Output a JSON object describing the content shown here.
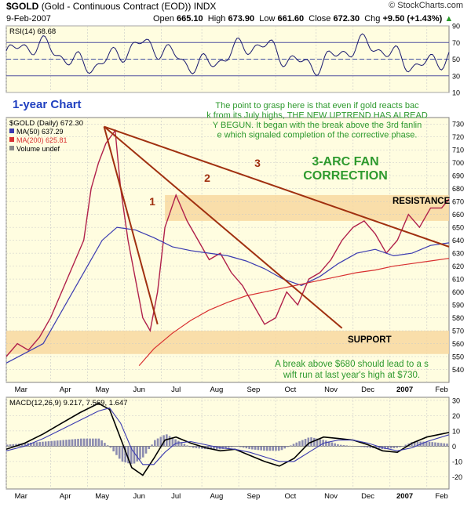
{
  "header": {
    "symbol": "$GOLD",
    "name": "(Gold - Continuous Contract (EOD))",
    "exchange": "INDX",
    "brand": "© StockCharts.com",
    "date": "9-Feb-2007",
    "open_label": "Open",
    "open": "665.10",
    "high_label": "High",
    "high": "673.90",
    "low_label": "Low",
    "low": "661.60",
    "close_label": "Close",
    "close": "672.30",
    "chg_label": "Chg",
    "chg": "+9.50 (+1.43%)",
    "chg_arrow": "▲"
  },
  "colors": {
    "panel_bg": "#fffde0",
    "grid": "#c8c8c8",
    "band": "#f8d8a0",
    "price_line": "#b0204a",
    "ma50": "#3a3ab0",
    "ma200": "#d83030",
    "fan": "#a03010",
    "annotation_green": "#2e9a2e",
    "annotation_blue": "#2040c0",
    "macd_hist": "#8c8cb0"
  },
  "annotations": {
    "one_year": "1-year Chart",
    "commentary": "The point to grasp here is that even if gold reacts back from its July highs, THE NEW UPTREND HAS ALREADY BEGUN. It began with the break above the 3rd fanline which signaled completion of the corrective phase.",
    "fan_title_1": "3-ARC FAN",
    "fan_title_2": "CORRECTION",
    "resistance": "RESISTANCE",
    "support": "SUPPORT",
    "breakout": "A break above $680 should lead to a swift run at last year's high at $730.",
    "fan_1": "1",
    "fan_2": "2",
    "fan_3": "3"
  },
  "chart_data": [
    {
      "type": "line",
      "panel": "RSI",
      "legend": "RSI(14) 68.68",
      "ylim": [
        10,
        90
      ],
      "yticks": [
        "10",
        "30",
        "50",
        "70",
        "90"
      ],
      "reference_lines": [
        30,
        50,
        70
      ]
    },
    {
      "type": "line",
      "panel": "Price",
      "legend": [
        "$GOLD (Daily) 672.30",
        "MA(50) 637.29",
        "MA(200) 625.81",
        "Volume undef"
      ],
      "ylim": [
        530,
        735
      ],
      "yticks": [
        "540",
        "550",
        "560",
        "570",
        "580",
        "590",
        "600",
        "610",
        "620",
        "630",
        "640",
        "650",
        "660",
        "670",
        "680",
        "690",
        "700",
        "710",
        "720",
        "730"
      ],
      "x_labels": [
        "Mar",
        "Apr",
        "May",
        "Jun",
        "Jul",
        "Aug",
        "Sep",
        "Oct",
        "Nov",
        "Dec",
        "2007",
        "Feb"
      ],
      "x_label_pos": [
        0.4,
        1.6,
        2.6,
        3.6,
        4.6,
        5.7,
        6.7,
        7.7,
        8.8,
        9.8,
        10.8,
        11.8
      ],
      "resistance_band": [
        655,
        675
      ],
      "support_band": [
        552,
        570
      ],
      "series": [
        {
          "name": "$GOLD (Daily)",
          "x": [
            0,
            0.3,
            0.6,
            0.9,
            1.2,
            1.5,
            1.8,
            2.1,
            2.3,
            2.5,
            2.7,
            2.95,
            3.1,
            3.3,
            3.5,
            3.7,
            3.9,
            4.1,
            4.3,
            4.6,
            4.9,
            5.2,
            5.5,
            5.8,
            6.1,
            6.4,
            6.7,
            7.0,
            7.3,
            7.6,
            7.9,
            8.2,
            8.5,
            8.8,
            9.1,
            9.4,
            9.7,
            10.0,
            10.3,
            10.6,
            10.9,
            11.2,
            11.5,
            11.8,
            12.0
          ],
          "y": [
            550,
            560,
            555,
            565,
            580,
            600,
            620,
            640,
            680,
            700,
            715,
            725,
            680,
            640,
            610,
            580,
            570,
            600,
            650,
            675,
            655,
            640,
            625,
            630,
            615,
            605,
            590,
            575,
            580,
            600,
            590,
            610,
            615,
            625,
            640,
            650,
            655,
            645,
            630,
            640,
            660,
            650,
            665,
            665,
            672
          ]
        },
        {
          "name": "MA(50)",
          "x": [
            0,
            1.0,
            2.0,
            2.6,
            3.0,
            3.5,
            4.0,
            4.5,
            5.0,
            5.5,
            6.0,
            6.5,
            7.0,
            7.5,
            8.0,
            8.5,
            9.0,
            9.5,
            10.0,
            10.5,
            11.0,
            11.5,
            12.0
          ],
          "y": [
            545,
            560,
            610,
            640,
            650,
            648,
            642,
            635,
            632,
            630,
            628,
            624,
            618,
            610,
            605,
            612,
            622,
            630,
            633,
            628,
            630,
            636,
            638
          ]
        },
        {
          "name": "MA(200)",
          "x": [
            3.6,
            4.0,
            4.5,
            5.0,
            5.5,
            6.0,
            6.5,
            7.0,
            7.5,
            8.0,
            8.5,
            9.0,
            9.5,
            10.0,
            10.5,
            11.0,
            11.5,
            12.0
          ],
          "y": [
            543,
            556,
            568,
            578,
            586,
            592,
            597,
            600,
            603,
            606,
            609,
            612,
            615,
            617,
            620,
            622,
            624,
            626
          ]
        }
      ],
      "fan_lines": [
        {
          "label": "1",
          "from": [
            2.65,
            728
          ],
          "to": [
            4.1,
            575
          ]
        },
        {
          "label": "2",
          "from": [
            2.65,
            728
          ],
          "to": [
            9.1,
            572
          ]
        },
        {
          "label": "3",
          "from": [
            2.65,
            728
          ],
          "to": [
            12.0,
            635
          ]
        }
      ]
    },
    {
      "type": "line",
      "panel": "MACD",
      "legend": "MACD(12,26,9) 9.217, 7.569, 1.647",
      "ylim": [
        -28,
        32
      ],
      "yticks": [
        "-20",
        "-10",
        "0",
        "10",
        "20",
        "30"
      ],
      "x_labels": [
        "Mar",
        "Apr",
        "May",
        "Jun",
        "Jul",
        "Aug",
        "Sep",
        "Oct",
        "Nov",
        "Dec",
        "2007",
        "Feb"
      ],
      "x_label_pos": [
        0.4,
        1.6,
        2.6,
        3.6,
        4.6,
        5.7,
        6.7,
        7.7,
        8.8,
        9.8,
        10.8,
        11.8
      ],
      "series": [
        {
          "name": "MACD",
          "x": [
            0,
            0.5,
            1.0,
            1.5,
            2.0,
            2.5,
            2.8,
            3.1,
            3.4,
            3.7,
            4.0,
            4.3,
            4.6,
            5.0,
            5.4,
            5.8,
            6.2,
            6.6,
            7.0,
            7.4,
            7.8,
            8.2,
            8.6,
            9.0,
            9.4,
            9.8,
            10.2,
            10.6,
            11.0,
            11.4,
            11.8,
            12.0
          ],
          "y": [
            -2,
            2,
            8,
            15,
            22,
            28,
            24,
            5,
            -14,
            -19,
            -8,
            4,
            6,
            2,
            -1,
            -3,
            -2,
            -6,
            -10,
            -13,
            -8,
            2,
            6,
            5,
            4,
            1,
            -3,
            -4,
            2,
            6,
            8,
            9
          ]
        },
        {
          "name": "Signal",
          "x": [
            0,
            0.5,
            1.0,
            1.5,
            2.0,
            2.5,
            2.8,
            3.1,
            3.4,
            3.7,
            4.0,
            4.3,
            4.6,
            5.0,
            5.4,
            5.8,
            6.2,
            6.6,
            7.0,
            7.4,
            7.8,
            8.2,
            8.6,
            9.0,
            9.4,
            9.8,
            10.2,
            10.6,
            11.0,
            11.4,
            11.8,
            12.0
          ],
          "y": [
            -3,
            0,
            5,
            11,
            17,
            23,
            25,
            15,
            -2,
            -12,
            -12,
            -4,
            2,
            3,
            1,
            -1,
            -2,
            -4,
            -7,
            -10,
            -10,
            -4,
            2,
            4,
            4,
            2,
            -1,
            -3,
            -1,
            3,
            6,
            7.5
          ]
        }
      ]
    }
  ]
}
